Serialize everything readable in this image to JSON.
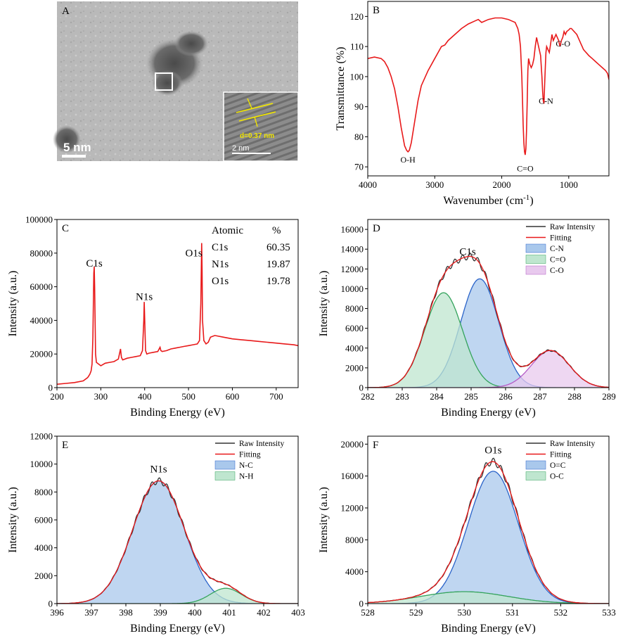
{
  "panel_a": {
    "label": "A",
    "scale_bar": "5 nm",
    "inset_scale_bar": "2 nm",
    "lattice_spacing": "d=0.37 nm"
  },
  "colors": {
    "red": "#e8191a",
    "blue_fill": "#a9c8ec",
    "blue_line": "#2a63c9",
    "green_fill": "#bfe6cf",
    "green_line": "#34a35c",
    "purple_fill": "#e8c9ee",
    "purple_line": "#b45bc6",
    "raw": "#333333"
  },
  "chart_data": [
    {
      "id": "B",
      "label": "B",
      "type": "line",
      "xlabel": "Wavenumber (cm-1)",
      "ylabel": "Transmittance (%)",
      "xlim": [
        4000,
        400
      ],
      "ylim": [
        67,
        125
      ],
      "xticks": [
        4000,
        3000,
        2000,
        1000
      ],
      "yticks": [
        70,
        80,
        90,
        100,
        110,
        120
      ],
      "annotations": [
        {
          "text": "O-H",
          "x": 3400,
          "y": 71.5
        },
        {
          "text": "C=O",
          "x": 1650,
          "y": 68.5
        },
        {
          "text": "C-N",
          "x": 1340,
          "y": 91
        },
        {
          "text": "C-O",
          "x": 1085,
          "y": 110
        }
      ],
      "series": [
        {
          "color": "#e8191a",
          "x": [
            4000,
            3900,
            3800,
            3750,
            3700,
            3650,
            3600,
            3550,
            3500,
            3450,
            3420,
            3400,
            3380,
            3350,
            3300,
            3250,
            3200,
            3100,
            3000,
            2950,
            2900,
            2850,
            2800,
            2700,
            2600,
            2500,
            2400,
            2350,
            2300,
            2200,
            2100,
            2000,
            1900,
            1850,
            1800,
            1780,
            1760,
            1740,
            1720,
            1700,
            1690,
            1680,
            1670,
            1660,
            1650,
            1640,
            1630,
            1620,
            1610,
            1600,
            1580,
            1560,
            1540,
            1520,
            1500,
            1480,
            1460,
            1440,
            1420,
            1400,
            1390,
            1380,
            1370,
            1360,
            1350,
            1340,
            1330,
            1310,
            1290,
            1270,
            1250,
            1230,
            1210,
            1190,
            1170,
            1150,
            1130,
            1110,
            1090,
            1070,
            1050,
            1030,
            1000,
            980,
            960,
            940,
            920,
            900,
            880,
            860,
            840,
            820,
            800,
            780,
            760,
            740,
            720,
            700,
            650,
            600,
            550,
            500,
            450,
            420,
            400
          ],
          "y": [
            106,
            106.5,
            106,
            105,
            103,
            100,
            96,
            90,
            83,
            77,
            75.5,
            75,
            75.5,
            78,
            85,
            92,
            97,
            102,
            106,
            108,
            110,
            110.5,
            112,
            114,
            116,
            117.5,
            118.5,
            119,
            118,
            119,
            119.5,
            119.5,
            119,
            118.5,
            118,
            117,
            116,
            114,
            110,
            100,
            92,
            84,
            78,
            75,
            74,
            76,
            82,
            92,
            102,
            106,
            104,
            103,
            104,
            106,
            110,
            113,
            111,
            109,
            107,
            100,
            95,
            92,
            91,
            97,
            103,
            108,
            110,
            109,
            108,
            111,
            114,
            112,
            113,
            114,
            113,
            112,
            110,
            112,
            113,
            115,
            114,
            115,
            115.5,
            116,
            116,
            115.5,
            115,
            114.5,
            114,
            113,
            112,
            111,
            110,
            109,
            108.5,
            108,
            107.5,
            107,
            106,
            105,
            104,
            103,
            102,
            101,
            99
          ]
        }
      ]
    },
    {
      "id": "C",
      "label": "C",
      "type": "line",
      "xlabel": "Binding Energy (eV)",
      "ylabel": "Intensity (a.u.)",
      "xlim": [
        200,
        750
      ],
      "ylim": [
        0,
        100000
      ],
      "xticks": [
        200,
        300,
        400,
        500,
        600,
        700
      ],
      "yticks": [
        0,
        20000,
        40000,
        60000,
        80000,
        100000
      ],
      "annotations": [
        {
          "text": "C1s",
          "x": 285,
          "y": 72000
        },
        {
          "text": "N1s",
          "x": 399,
          "y": 52000
        },
        {
          "text": "O1s",
          "x": 512,
          "y": 78000
        }
      ],
      "table": {
        "header": [
          "Atomic",
          "%"
        ],
        "rows": [
          [
            "C1s",
            "60.35"
          ],
          [
            "N1s",
            "19.87"
          ],
          [
            "O1s",
            "19.78"
          ]
        ]
      },
      "series": [
        {
          "color": "#e8191a",
          "x": [
            200,
            220,
            240,
            260,
            270,
            275,
            278,
            280,
            282,
            284,
            285,
            286,
            288,
            290,
            295,
            300,
            310,
            320,
            330,
            340,
            345,
            347,
            350,
            360,
            370,
            380,
            390,
            395,
            398,
            399,
            400,
            402,
            405,
            410,
            420,
            430,
            435,
            437,
            440,
            450,
            460,
            470,
            480,
            490,
            500,
            510,
            520,
            525,
            528,
            530,
            531,
            532,
            535,
            540,
            545,
            550,
            560,
            580,
            600,
            620,
            640,
            660,
            680,
            700,
            720,
            740,
            750
          ],
          "y": [
            2000,
            2500,
            3000,
            4000,
            6000,
            8000,
            10000,
            14000,
            30000,
            68000,
            72000,
            60000,
            20000,
            15000,
            14000,
            13000,
            14500,
            15000,
            15500,
            17000,
            23000,
            18000,
            16500,
            17500,
            18000,
            18500,
            19000,
            22000,
            40000,
            51000,
            42000,
            22000,
            20000,
            20500,
            21000,
            21500,
            24000,
            22000,
            21500,
            22000,
            23000,
            23500,
            24000,
            24500,
            25000,
            25500,
            26000,
            28000,
            50000,
            86000,
            70000,
            40000,
            28000,
            26000,
            27000,
            30000,
            31000,
            30000,
            29000,
            28500,
            28000,
            27500,
            27000,
            26500,
            26000,
            25500,
            25000
          ]
        }
      ]
    },
    {
      "id": "D",
      "label": "D",
      "type": "area",
      "peak_label": "C1s",
      "xlabel": "Binding Energy (eV)",
      "ylabel": "Intensity (a.u.)",
      "xlim": [
        282,
        289
      ],
      "ylim": [
        0,
        17000
      ],
      "xticks": [
        282,
        283,
        284,
        285,
        286,
        287,
        288,
        289
      ],
      "yticks": [
        0,
        2000,
        4000,
        6000,
        8000,
        10000,
        12000,
        14000,
        16000
      ],
      "legend": [
        "Raw Intensity",
        "Fitting",
        "C-N",
        "C=O",
        "C-O"
      ],
      "components": [
        {
          "name": "C-N",
          "center": 285.25,
          "height": 11000,
          "sigma": 0.55
        },
        {
          "name": "C=O",
          "center": 284.2,
          "height": 9600,
          "sigma": 0.55
        },
        {
          "name": "C-O",
          "center": 287.3,
          "height": 3750,
          "sigma": 0.55
        }
      ]
    },
    {
      "id": "E",
      "label": "E",
      "type": "area",
      "peak_label": "N1s",
      "xlabel": "Binding Energy (eV)",
      "ylabel": "Intensity (a.u.)",
      "xlim": [
        396,
        403
      ],
      "ylim": [
        0,
        12000
      ],
      "xticks": [
        396,
        397,
        398,
        399,
        400,
        401,
        402,
        403
      ],
      "yticks": [
        0,
        2000,
        4000,
        6000,
        8000,
        10000,
        12000
      ],
      "legend": [
        "Raw Intensity",
        "Fitting",
        "N-C",
        "N-H"
      ],
      "components": [
        {
          "name": "N-C",
          "center": 398.95,
          "height": 8800,
          "sigma": 0.75
        },
        {
          "name": "N-H",
          "center": 400.9,
          "height": 1100,
          "sigma": 0.45
        }
      ]
    },
    {
      "id": "F",
      "label": "F",
      "type": "area",
      "peak_label": "O1s",
      "xlabel": "Binding Energy (eV)",
      "ylabel": "Intensity (a.u.)",
      "xlim": [
        528,
        533
      ],
      "ylim": [
        0,
        21000
      ],
      "xticks": [
        528,
        529,
        530,
        531,
        532,
        533
      ],
      "yticks": [
        0,
        4000,
        8000,
        12000,
        16000,
        20000
      ],
      "legend": [
        "Raw Intensity",
        "Fitting",
        "O=C",
        "O-C"
      ],
      "components": [
        {
          "name": "O=C",
          "center": 530.6,
          "height": 16600,
          "sigma": 0.52
        },
        {
          "name": "O-C",
          "center": 530.0,
          "height": 1500,
          "sigma": 0.9
        }
      ]
    }
  ]
}
